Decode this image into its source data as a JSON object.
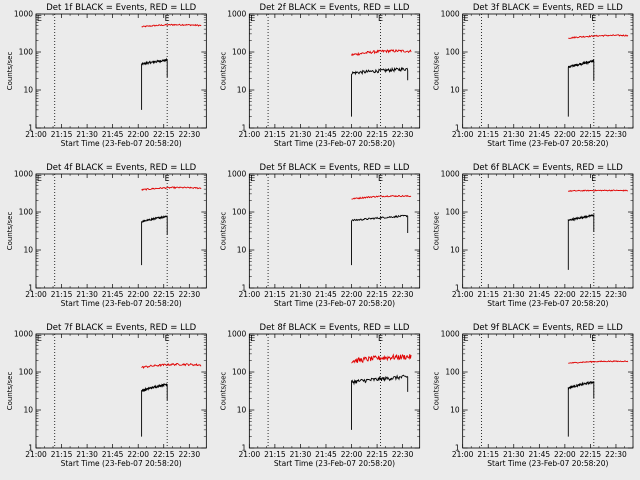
{
  "figure": {
    "background": "#ebebeb"
  },
  "chart_data": [
    {
      "type": "line",
      "title": "Det 1f BLACK = Events, RED = LLD",
      "xlabel": "Start Time (23-Feb-07 20:58:20)",
      "ylabel": "Counts/sec",
      "x_ticks": [
        "21:00",
        "21:15",
        "21:30",
        "21:45",
        "22:00",
        "22:15",
        "22:30"
      ],
      "y_ticks": [
        "1",
        "10",
        "100",
        "1000"
      ],
      "y_scale": "log",
      "ylim": [
        1,
        1000
      ],
      "xlim": [
        "21:00",
        "22:40"
      ],
      "vlines": [
        "21:11",
        "22:17"
      ],
      "markers": [
        {
          "text": "E",
          "x": "21:02"
        },
        {
          "text": "E",
          "x": "22:17"
        }
      ],
      "series": [
        {
          "color": "#e00000",
          "seg": [
            "22:02",
            "22:37"
          ],
          "y0": 480,
          "y1": 520,
          "noise": 0.04,
          "arch": 0.08
        },
        {
          "color": "#000000",
          "seg": [
            "22:02",
            "22:17"
          ],
          "y0": 48,
          "y1": 62,
          "noise": 0.06,
          "start": 3,
          "end": 22
        }
      ]
    },
    {
      "type": "line",
      "title": "Det 2f BLACK = Events, RED = LLD",
      "xlabel": "Start Time (23-Feb-07 20:58:20)",
      "ylabel": "Counts/sec",
      "x_ticks": [
        "21:00",
        "21:15",
        "21:30",
        "21:45",
        "22:00",
        "22:15",
        "22:30"
      ],
      "y_ticks": [
        "1",
        "10",
        "100",
        "1000"
      ],
      "y_scale": "log",
      "ylim": [
        1,
        1000
      ],
      "xlim": [
        "21:00",
        "22:40"
      ],
      "vlines": [
        "21:11",
        "22:17"
      ],
      "markers": [
        {
          "text": "E",
          "x": "21:02"
        },
        {
          "text": "E",
          "x": "22:17"
        }
      ],
      "series": [
        {
          "color": "#e00000",
          "seg": [
            "22:00",
            "22:35"
          ],
          "y0": 88,
          "y1": 110,
          "noise": 0.08,
          "arch": 0.1
        },
        {
          "color": "#000000",
          "seg": [
            "22:00",
            "22:33"
          ],
          "y0": 28,
          "y1": 36,
          "noise": 0.1,
          "start": 2,
          "end": 18
        }
      ]
    },
    {
      "type": "line",
      "title": "Det 3f BLACK = Events, RED = LLD",
      "xlabel": "Start Time (23-Feb-07 20:58:20)",
      "ylabel": "Counts/sec",
      "x_ticks": [
        "21:00",
        "21:15",
        "21:30",
        "21:45",
        "22:00",
        "22:15",
        "22:30"
      ],
      "y_ticks": [
        "1",
        "10",
        "100",
        "1000"
      ],
      "y_scale": "log",
      "ylim": [
        1,
        1000
      ],
      "xlim": [
        "21:00",
        "22:40"
      ],
      "vlines": [
        "21:11",
        "22:17"
      ],
      "markers": [
        {
          "text": "E",
          "x": "21:02"
        },
        {
          "text": "E",
          "x": "22:17"
        }
      ],
      "series": [
        {
          "color": "#e00000",
          "seg": [
            "22:02",
            "22:37"
          ],
          "y0": 240,
          "y1": 280,
          "noise": 0.04,
          "arch": 0.05
        },
        {
          "color": "#000000",
          "seg": [
            "22:02",
            "22:17"
          ],
          "y0": 40,
          "y1": 58,
          "noise": 0.07,
          "start": 2,
          "end": 18
        }
      ]
    },
    {
      "type": "line",
      "title": "Det 4f BLACK = Events, RED = LLD",
      "xlabel": "Start Time (23-Feb-07 20:58:20)",
      "ylabel": "Counts/sec",
      "x_ticks": [
        "21:00",
        "21:15",
        "21:30",
        "21:45",
        "22:00",
        "22:15",
        "22:30"
      ],
      "y_ticks": [
        "1",
        "10",
        "100",
        "1000"
      ],
      "y_scale": "log",
      "ylim": [
        1,
        1000
      ],
      "xlim": [
        "21:00",
        "22:40"
      ],
      "vlines": [
        "21:11",
        "22:17"
      ],
      "markers": [
        {
          "text": "E",
          "x": "21:02"
        },
        {
          "text": "E",
          "x": "22:17"
        }
      ],
      "series": [
        {
          "color": "#e00000",
          "seg": [
            "22:02",
            "22:37"
          ],
          "y0": 400,
          "y1": 440,
          "noise": 0.04,
          "arch": 0.08
        },
        {
          "color": "#000000",
          "seg": [
            "22:02",
            "22:17"
          ],
          "y0": 55,
          "y1": 78,
          "noise": 0.05,
          "start": 4,
          "end": 25
        }
      ]
    },
    {
      "type": "line",
      "title": "Det 5f BLACK = Events, RED = LLD",
      "xlabel": "Start Time (23-Feb-07 20:58:20)",
      "ylabel": "Counts/sec",
      "x_ticks": [
        "21:00",
        "21:15",
        "21:30",
        "21:45",
        "22:00",
        "22:15",
        "22:30"
      ],
      "y_ticks": [
        "1",
        "10",
        "100",
        "1000"
      ],
      "y_scale": "log",
      "ylim": [
        1,
        1000
      ],
      "xlim": [
        "21:00",
        "22:40"
      ],
      "vlines": [
        "21:11",
        "22:17"
      ],
      "markers": [
        {
          "text": "E",
          "x": "21:02"
        },
        {
          "text": "E",
          "x": "22:17"
        }
      ],
      "series": [
        {
          "color": "#e00000",
          "seg": [
            "22:00",
            "22:35"
          ],
          "y0": 230,
          "y1": 270,
          "noise": 0.04,
          "arch": 0.07
        },
        {
          "color": "#000000",
          "seg": [
            "22:00",
            "22:33"
          ],
          "y0": 60,
          "y1": 80,
          "noise": 0.05,
          "start": 4,
          "end": 28
        }
      ]
    },
    {
      "type": "line",
      "title": "Det 6f BLACK = Events, RED = LLD",
      "xlabel": "Start Time (23-Feb-07 20:58:20)",
      "ylabel": "Counts/sec",
      "x_ticks": [
        "21:00",
        "21:15",
        "21:30",
        "21:45",
        "22:00",
        "22:15",
        "22:30"
      ],
      "y_ticks": [
        "1",
        "10",
        "100",
        "1000"
      ],
      "y_scale": "log",
      "ylim": [
        1,
        1000
      ],
      "xlim": [
        "21:00",
        "22:40"
      ],
      "vlines": [
        "21:11",
        "22:17"
      ],
      "markers": [
        {
          "text": "E",
          "x": "21:02"
        },
        {
          "text": "E",
          "x": "22:17"
        }
      ],
      "series": [
        {
          "color": "#e00000",
          "seg": [
            "22:02",
            "22:37"
          ],
          "y0": 360,
          "y1": 370,
          "noise": 0.03,
          "arch": 0.02
        },
        {
          "color": "#000000",
          "seg": [
            "22:02",
            "22:17"
          ],
          "y0": 60,
          "y1": 82,
          "noise": 0.05,
          "start": 3,
          "end": 30
        }
      ]
    },
    {
      "type": "line",
      "title": "Det 7f BLACK = Events, RED = LLD",
      "xlabel": "Start Time (23-Feb-07 20:58:20)",
      "ylabel": "Counts/sec",
      "x_ticks": [
        "21:00",
        "21:15",
        "21:30",
        "21:45",
        "22:00",
        "22:15",
        "22:30"
      ],
      "y_ticks": [
        "1",
        "10",
        "100",
        "1000"
      ],
      "y_scale": "log",
      "ylim": [
        1,
        1000
      ],
      "xlim": [
        "21:00",
        "22:40"
      ],
      "vlines": [
        "21:11",
        "22:17"
      ],
      "markers": [
        {
          "text": "E",
          "x": "21:02"
        },
        {
          "text": "E",
          "x": "22:17"
        }
      ],
      "series": [
        {
          "color": "#e00000",
          "seg": [
            "22:02",
            "22:37"
          ],
          "y0": 140,
          "y1": 160,
          "noise": 0.06,
          "arch": 0.1
        },
        {
          "color": "#000000",
          "seg": [
            "22:02",
            "22:17"
          ],
          "y0": 32,
          "y1": 48,
          "noise": 0.07,
          "start": 2,
          "end": 18
        }
      ]
    },
    {
      "type": "line",
      "title": "Det 8f BLACK = Events, RED = LLD",
      "xlabel": "Start Time (23-Feb-07 20:58:20)",
      "ylabel": "Counts/sec",
      "x_ticks": [
        "21:00",
        "21:15",
        "21:30",
        "21:45",
        "22:00",
        "22:15",
        "22:30"
      ],
      "y_ticks": [
        "1",
        "10",
        "100",
        "1000"
      ],
      "y_scale": "log",
      "ylim": [
        1,
        1000
      ],
      "xlim": [
        "21:00",
        "22:40"
      ],
      "vlines": [
        "21:11",
        "22:17"
      ],
      "markers": [
        {
          "text": "E",
          "x": "21:02"
        },
        {
          "text": "E",
          "x": "22:17"
        }
      ],
      "series": [
        {
          "color": "#e00000",
          "seg": [
            "22:00",
            "22:35"
          ],
          "y0": 200,
          "y1": 260,
          "noise": 0.16,
          "arch": 0.05
        },
        {
          "color": "#000000",
          "seg": [
            "22:00",
            "22:33"
          ],
          "y0": 55,
          "y1": 75,
          "noise": 0.12,
          "start": 3,
          "end": 30
        }
      ]
    },
    {
      "type": "line",
      "title": "Det 9f BLACK = Events, RED = LLD",
      "xlabel": "Start Time (23-Feb-07 20:58:20)",
      "ylabel": "Counts/sec",
      "x_ticks": [
        "21:00",
        "21:15",
        "21:30",
        "21:45",
        "22:00",
        "22:15",
        "22:30"
      ],
      "y_ticks": [
        "1",
        "10",
        "100",
        "1000"
      ],
      "y_scale": "log",
      "ylim": [
        1,
        1000
      ],
      "xlim": [
        "21:00",
        "22:40"
      ],
      "vlines": [
        "21:11",
        "22:17"
      ],
      "markers": [
        {
          "text": "E",
          "x": "21:02"
        },
        {
          "text": "E",
          "x": "22:17"
        }
      ],
      "series": [
        {
          "color": "#e00000",
          "seg": [
            "22:02",
            "22:37"
          ],
          "y0": 175,
          "y1": 195,
          "noise": 0.03,
          "arch": 0.04
        },
        {
          "color": "#000000",
          "seg": [
            "22:02",
            "22:17"
          ],
          "y0": 38,
          "y1": 55,
          "noise": 0.06,
          "start": 2,
          "end": 20
        }
      ]
    }
  ]
}
